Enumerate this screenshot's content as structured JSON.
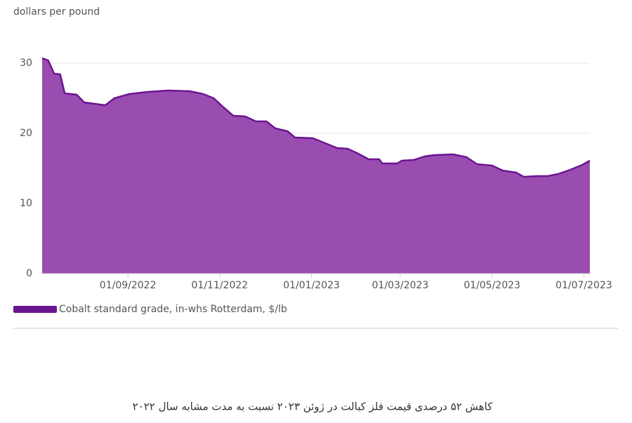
{
  "chart_data": {
    "type": "area",
    "ylabel": "dollars per pound",
    "caption": "کاهش ۵۲ درصدی قیمت فلز کبالت در ژوئن ۲۰۲۳ نسبت به مدت مشابه سال ۲۰۲۲",
    "x": [
      "2022-07-06",
      "2022-07-10",
      "2022-07-14",
      "2022-07-18",
      "2022-07-21",
      "2022-07-29",
      "2022-08-03",
      "2022-08-10",
      "2022-08-17",
      "2022-08-23",
      "2022-09-02",
      "2022-09-14",
      "2022-09-28",
      "2022-10-12",
      "2022-10-21",
      "2022-10-28",
      "2022-11-03",
      "2022-11-10",
      "2022-11-18",
      "2022-11-25",
      "2022-12-02",
      "2022-12-08",
      "2022-12-16",
      "2022-12-21",
      "2023-01-02",
      "2023-01-10",
      "2023-01-18",
      "2023-01-25",
      "2023-02-01",
      "2023-02-08",
      "2023-02-15",
      "2023-02-17",
      "2023-02-27",
      "2023-03-02",
      "2023-03-10",
      "2023-03-17",
      "2023-03-24",
      "2023-04-05",
      "2023-04-14",
      "2023-04-21",
      "2023-05-01",
      "2023-05-08",
      "2023-05-17",
      "2023-05-22",
      "2023-05-31",
      "2023-06-07",
      "2023-06-14",
      "2023-06-22",
      "2023-06-30",
      "2023-07-05"
    ],
    "series": [
      {
        "name": "Cobalt standard grade, in-whs Rotterdam, $/lb",
        "color": "#6b1591",
        "fill": "#9a4db1",
        "values": [
          30.7,
          30.4,
          28.5,
          28.4,
          25.7,
          25.5,
          24.4,
          24.2,
          24.0,
          25.0,
          25.6,
          25.9,
          26.1,
          26.0,
          25.6,
          25.0,
          23.8,
          22.5,
          22.4,
          21.7,
          21.7,
          20.7,
          20.3,
          19.4,
          19.3,
          18.6,
          17.9,
          17.8,
          17.1,
          16.3,
          16.3,
          15.7,
          15.7,
          16.1,
          16.2,
          16.7,
          16.9,
          17.0,
          16.6,
          15.6,
          15.4,
          14.7,
          14.4,
          13.8,
          13.9,
          13.9,
          14.2,
          14.8,
          15.5,
          16.1
        ]
      }
    ],
    "xlim": [
      "2022-07-06",
      "2023-07-05"
    ],
    "xticks": [
      {
        "value": "2022-09-01",
        "label": "01/09/2022"
      },
      {
        "value": "2022-11-01",
        "label": "01/11/2022"
      },
      {
        "value": "2023-01-01",
        "label": "01/01/2023"
      },
      {
        "value": "2023-03-01",
        "label": "01/03/2023"
      },
      {
        "value": "2023-05-01",
        "label": "01/05/2023"
      },
      {
        "value": "2023-07-01",
        "label": "01/07/2023"
      }
    ],
    "ylim": [
      0,
      35
    ],
    "yticks": [
      0,
      10,
      20,
      30
    ],
    "grid": true
  }
}
